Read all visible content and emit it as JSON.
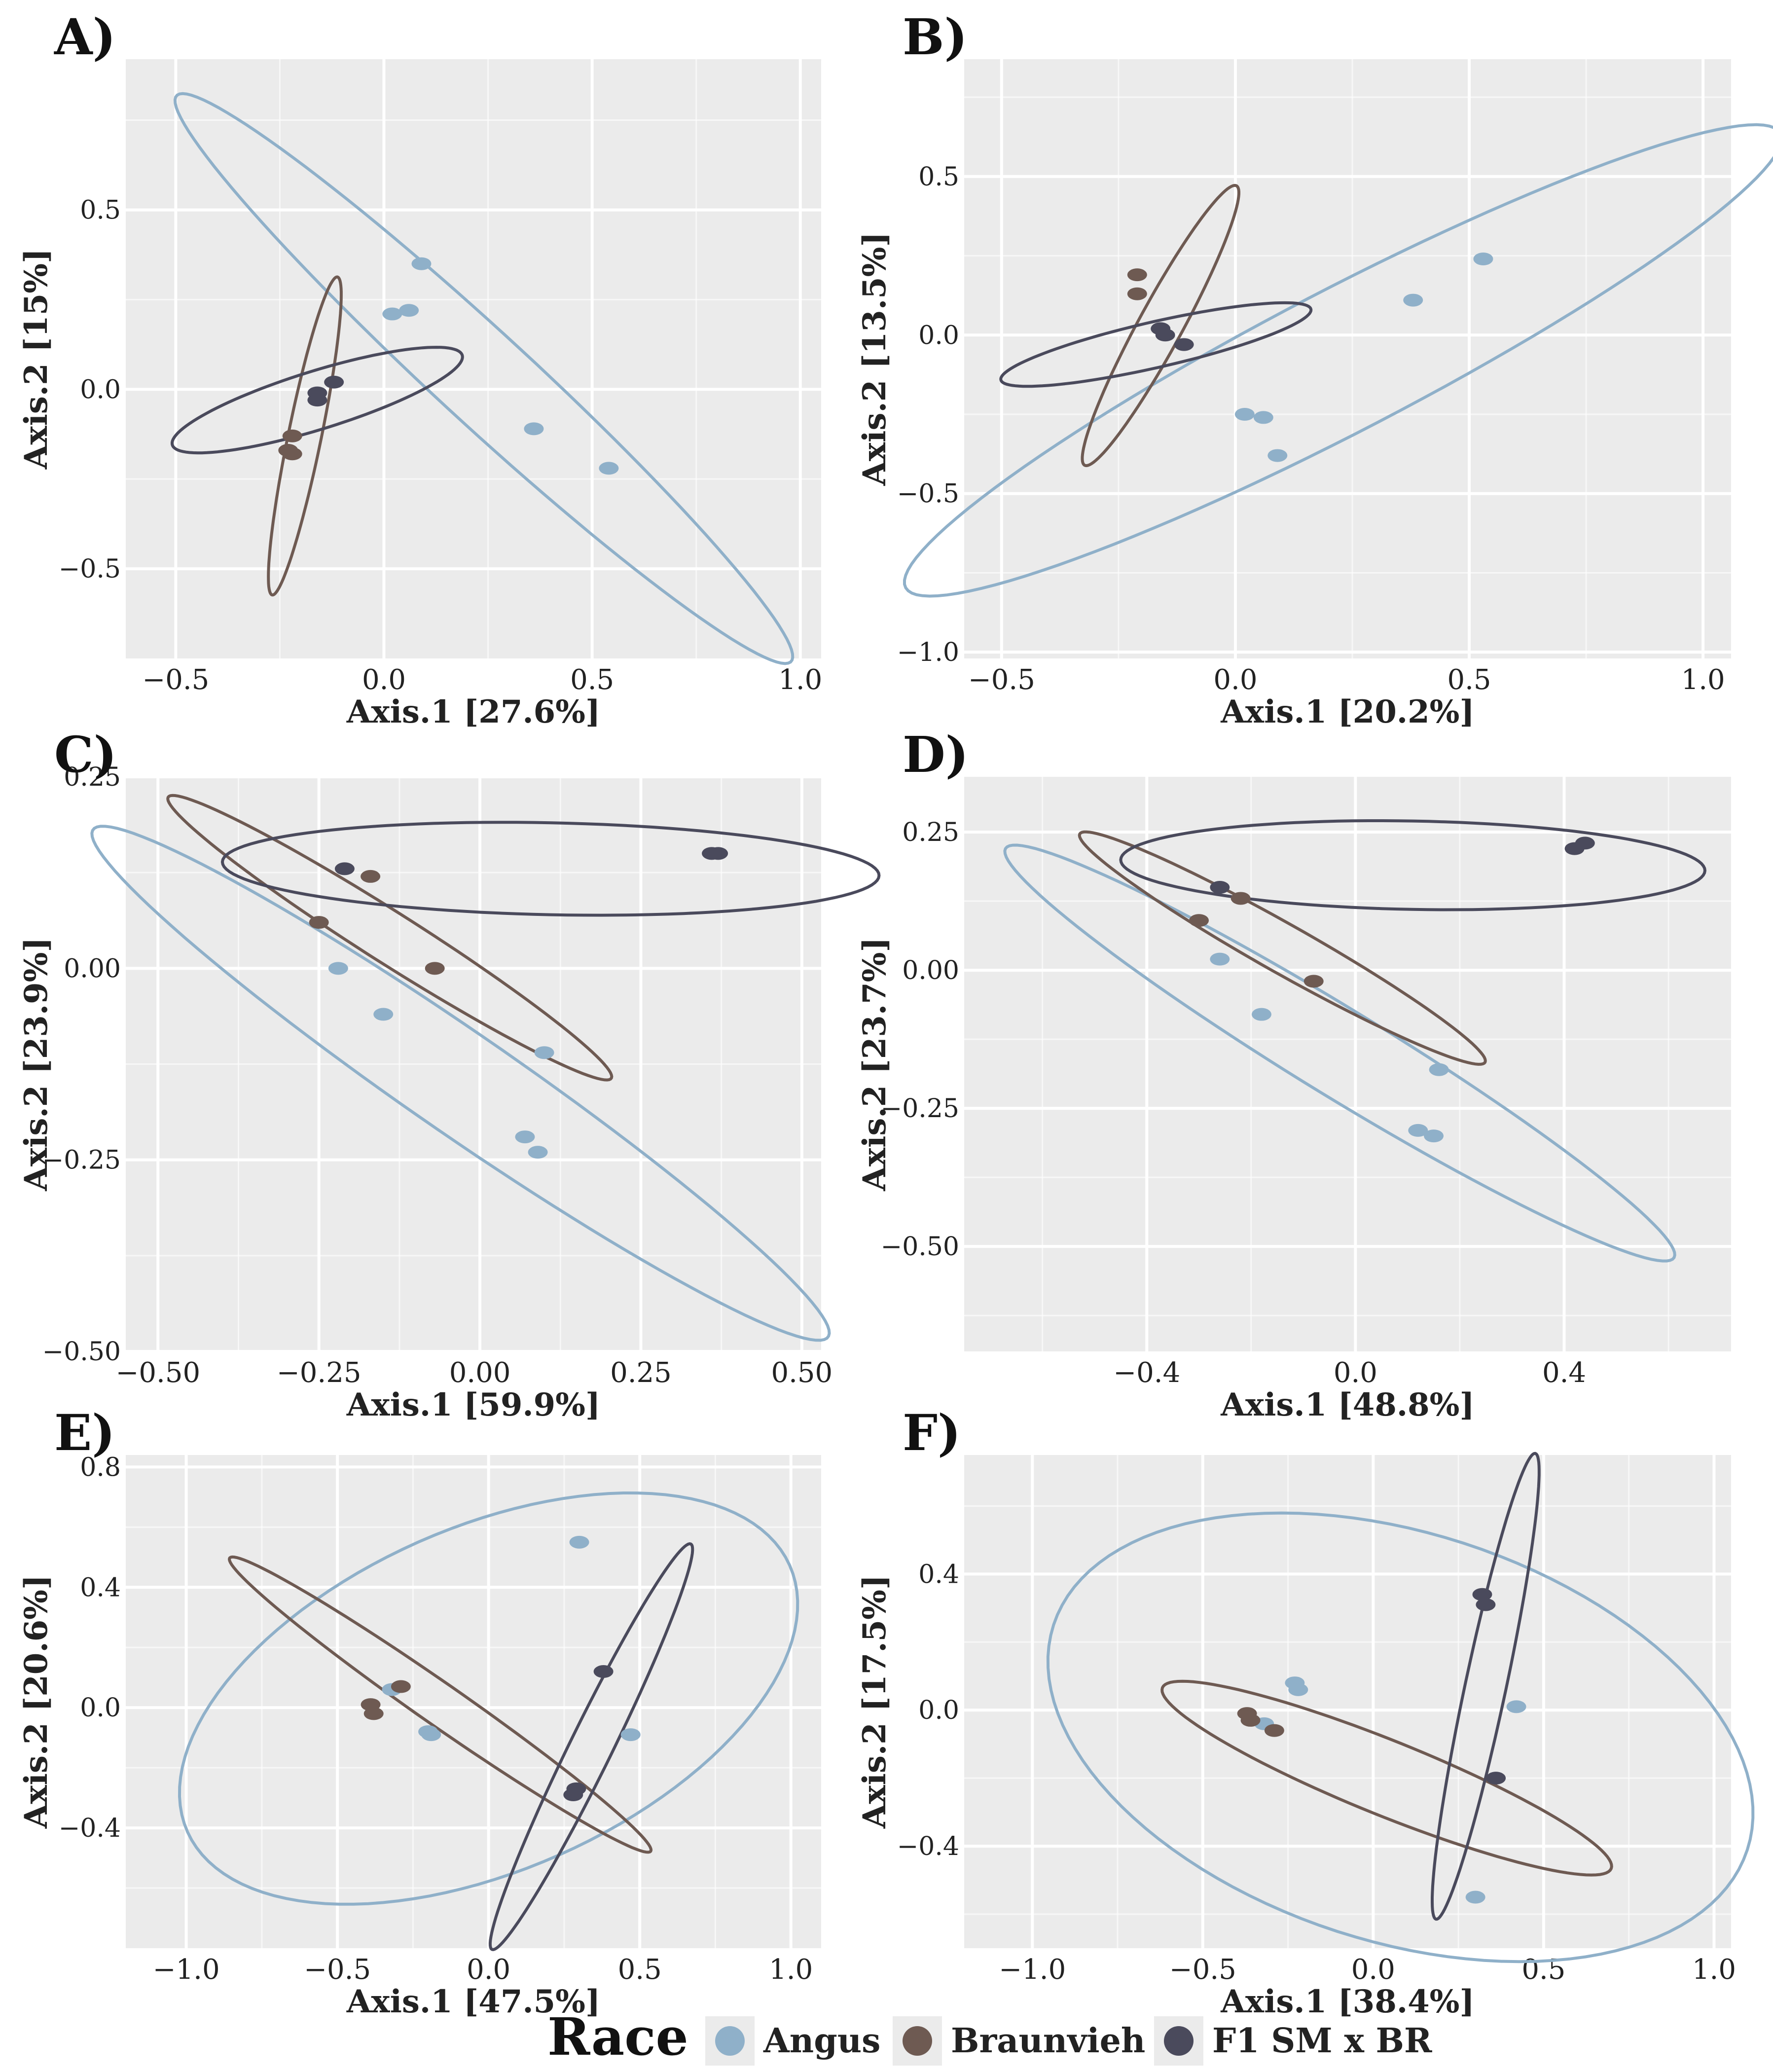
{
  "colors": {
    "Angus": "#8fb0c9",
    "Braunvieh": "#6e5a52",
    "F1 SM x BR": "#4a4a5c",
    "panel_bg": "#ebebeb",
    "grid": "#ffffff"
  },
  "legend": {
    "title": "Race",
    "entries": [
      "Angus",
      "Braunvieh",
      "F1 SM x BR"
    ]
  },
  "chart_data": [
    {
      "panel": "A)",
      "type": "scatter",
      "xlabel": "Axis.1   [27.6%]",
      "ylabel": "Axis.2   [15%]",
      "xlim": [
        -0.62,
        1.05
      ],
      "ylim": [
        -0.75,
        0.92
      ],
      "xticks": [
        -0.5,
        0.0,
        0.5,
        1.0
      ],
      "xtick_labels": [
        "−0.5",
        "0.0",
        "0.5",
        "1.0"
      ],
      "yticks": [
        -0.5,
        0.0,
        0.5
      ],
      "ytick_labels": [
        "−0.5",
        "0.0",
        "0.5"
      ],
      "points": [
        {
          "group": "Angus",
          "x": 0.09,
          "y": 0.35
        },
        {
          "group": "Angus",
          "x": 0.02,
          "y": 0.21
        },
        {
          "group": "Angus",
          "x": 0.06,
          "y": 0.22
        },
        {
          "group": "Angus",
          "x": 0.36,
          "y": -0.11
        },
        {
          "group": "Angus",
          "x": 0.54,
          "y": -0.22
        },
        {
          "group": "Braunvieh",
          "x": -0.22,
          "y": -0.13
        },
        {
          "group": "Braunvieh",
          "x": -0.23,
          "y": -0.17
        },
        {
          "group": "Braunvieh",
          "x": -0.22,
          "y": -0.18
        },
        {
          "group": "F1 SM x BR",
          "x": -0.16,
          "y": -0.01
        },
        {
          "group": "F1 SM x BR",
          "x": -0.12,
          "y": 0.02
        },
        {
          "group": "F1 SM x BR",
          "x": -0.16,
          "y": -0.03
        }
      ],
      "ellipses": [
        {
          "group": "Angus",
          "cx": 0.24,
          "cy": 0.03,
          "a": 1.08,
          "b": 0.12,
          "angle": -47
        },
        {
          "group": "Braunvieh",
          "cx": -0.19,
          "cy": -0.13,
          "a": 0.45,
          "b": 0.04,
          "angle": 80
        },
        {
          "group": "F1 SM x BR",
          "cx": -0.16,
          "cy": -0.03,
          "a": 0.37,
          "b": 0.08,
          "angle": 20
        }
      ]
    },
    {
      "panel": "B)",
      "type": "scatter",
      "xlabel": "Axis.1   [20.2%]",
      "ylabel": "Axis.2   [13.5%]",
      "xlim": [
        -0.58,
        1.06
      ],
      "ylim": [
        -1.02,
        0.87
      ],
      "xticks": [
        -0.5,
        0.0,
        0.5,
        1.0
      ],
      "xtick_labels": [
        "−0.5",
        "0.0",
        "0.5",
        "1.0"
      ],
      "yticks": [
        -1.0,
        -0.5,
        0.0,
        0.5
      ],
      "ytick_labels": [
        "−1.0",
        "−0.5",
        "0.0",
        "0.5"
      ],
      "points": [
        {
          "group": "Angus",
          "x": 0.53,
          "y": 0.24
        },
        {
          "group": "Angus",
          "x": 0.38,
          "y": 0.11
        },
        {
          "group": "Angus",
          "x": 0.02,
          "y": -0.25
        },
        {
          "group": "Angus",
          "x": 0.06,
          "y": -0.26
        },
        {
          "group": "Angus",
          "x": 0.09,
          "y": -0.38
        },
        {
          "group": "Braunvieh",
          "x": -0.21,
          "y": 0.19
        },
        {
          "group": "Braunvieh",
          "x": -0.21,
          "y": 0.13
        },
        {
          "group": "F1 SM x BR",
          "x": -0.16,
          "y": 0.02
        },
        {
          "group": "F1 SM x BR",
          "x": -0.15,
          "y": 0.0
        },
        {
          "group": "F1 SM x BR",
          "x": -0.11,
          "y": -0.03
        }
      ],
      "ellipses": [
        {
          "group": "Angus",
          "cx": 0.23,
          "cy": -0.08,
          "a": 1.18,
          "b": 0.2,
          "angle": 38
        },
        {
          "group": "Braunvieh",
          "cx": -0.16,
          "cy": 0.03,
          "a": 0.47,
          "b": 0.05,
          "angle": 70
        },
        {
          "group": "F1 SM x BR",
          "cx": -0.17,
          "cy": -0.03,
          "a": 0.35,
          "b": 0.07,
          "angle": 19
        }
      ]
    },
    {
      "panel": "C)",
      "type": "scatter",
      "xlabel": "Axis.1   [59.9%]",
      "ylabel": "Axis.2   [23.9%]",
      "xlim": [
        -0.55,
        0.53
      ],
      "ylim": [
        -0.5,
        0.25
      ],
      "xticks": [
        -0.5,
        -0.25,
        0.0,
        0.25,
        0.5
      ],
      "xtick_labels": [
        "−0.50",
        "−0.25",
        "0.00",
        "0.25",
        "0.50"
      ],
      "yticks": [
        -0.5,
        -0.25,
        0.0,
        0.25
      ],
      "ytick_labels": [
        "−0.50",
        "−0.25",
        "0.00",
        "0.25"
      ],
      "points": [
        {
          "group": "Angus",
          "x": -0.22,
          "y": 0.0
        },
        {
          "group": "Angus",
          "x": -0.15,
          "y": -0.06
        },
        {
          "group": "Angus",
          "x": 0.1,
          "y": -0.11
        },
        {
          "group": "Angus",
          "x": 0.07,
          "y": -0.22
        },
        {
          "group": "Angus",
          "x": 0.09,
          "y": -0.24
        },
        {
          "group": "Braunvieh",
          "x": -0.17,
          "y": 0.12
        },
        {
          "group": "Braunvieh",
          "x": -0.25,
          "y": 0.06
        },
        {
          "group": "Braunvieh",
          "x": -0.07,
          "y": 0.0
        },
        {
          "group": "F1 SM x BR",
          "x": -0.21,
          "y": 0.13
        },
        {
          "group": "F1 SM x BR",
          "x": 0.36,
          "y": 0.15
        },
        {
          "group": "F1 SM x BR",
          "x": 0.37,
          "y": 0.15
        }
      ],
      "ellipses": [
        {
          "group": "Angus",
          "cx": -0.03,
          "cy": -0.15,
          "a": 0.66,
          "b": 0.07,
          "angle": -30
        },
        {
          "group": "Braunvieh",
          "cx": -0.14,
          "cy": 0.04,
          "a": 0.39,
          "b": 0.035,
          "angle": -28
        },
        {
          "group": "F1 SM x BR",
          "cx": 0.11,
          "cy": 0.13,
          "a": 0.51,
          "b": 0.06,
          "angle": -1
        }
      ]
    },
    {
      "panel": "D)",
      "type": "scatter",
      "xlabel": "Axis.1   [48.8%]",
      "ylabel": "Axis.2   [23.7%]",
      "xlim": [
        -0.75,
        0.72
      ],
      "ylim": [
        -0.69,
        0.35
      ],
      "xticks": [
        -0.4,
        0.0,
        0.4
      ],
      "xtick_labels": [
        "−0.4",
        "0.0",
        "0.4"
      ],
      "yticks": [
        -0.5,
        -0.25,
        0.0,
        0.25
      ],
      "ytick_labels": [
        "−0.50",
        "−0.25",
        "0.00",
        "0.25"
      ],
      "points": [
        {
          "group": "Angus",
          "x": -0.26,
          "y": 0.02
        },
        {
          "group": "Angus",
          "x": -0.18,
          "y": -0.08
        },
        {
          "group": "Angus",
          "x": 0.16,
          "y": -0.18
        },
        {
          "group": "Angus",
          "x": 0.12,
          "y": -0.29
        },
        {
          "group": "Angus",
          "x": 0.15,
          "y": -0.3
        },
        {
          "group": "Braunvieh",
          "x": -0.22,
          "y": 0.13
        },
        {
          "group": "Braunvieh",
          "x": -0.3,
          "y": 0.09
        },
        {
          "group": "Braunvieh",
          "x": -0.08,
          "y": -0.02
        },
        {
          "group": "F1 SM x BR",
          "x": -0.26,
          "y": 0.15
        },
        {
          "group": "F1 SM x BR",
          "x": 0.42,
          "y": 0.22
        },
        {
          "group": "F1 SM x BR",
          "x": 0.44,
          "y": 0.23
        }
      ],
      "ellipses": [
        {
          "group": "Angus",
          "cx": -0.03,
          "cy": -0.15,
          "a": 0.74,
          "b": 0.08,
          "angle": -30
        },
        {
          "group": "Braunvieh",
          "cx": -0.14,
          "cy": 0.04,
          "a": 0.44,
          "b": 0.045,
          "angle": -28
        },
        {
          "group": "F1 SM x BR",
          "cx": 0.11,
          "cy": 0.19,
          "a": 0.56,
          "b": 0.08,
          "angle": -1
        }
      ]
    },
    {
      "panel": "E)",
      "type": "scatter",
      "xlabel": "Axis.1   [47.5%]",
      "ylabel": "Axis.2   [20.6%]",
      "xlim": [
        -1.2,
        1.1
      ],
      "ylim": [
        -0.8,
        0.84
      ],
      "xticks": [
        -1.0,
        -0.5,
        0.0,
        0.5,
        1.0
      ],
      "xtick_labels": [
        "−1.0",
        "−0.5",
        "0.0",
        "0.5",
        "1.0"
      ],
      "yticks": [
        -0.4,
        0.0,
        0.4,
        0.8
      ],
      "ytick_labels": [
        "−0.4",
        "0.0",
        "0.4",
        "0.8"
      ],
      "points": [
        {
          "group": "Angus",
          "x": 0.3,
          "y": 0.55
        },
        {
          "group": "Angus",
          "x": -0.32,
          "y": 0.06
        },
        {
          "group": "Angus",
          "x": -0.2,
          "y": -0.08
        },
        {
          "group": "Angus",
          "x": -0.19,
          "y": -0.09
        },
        {
          "group": "Angus",
          "x": 0.47,
          "y": -0.09
        },
        {
          "group": "Braunvieh",
          "x": -0.39,
          "y": 0.01
        },
        {
          "group": "Braunvieh",
          "x": -0.29,
          "y": 0.07
        },
        {
          "group": "Braunvieh",
          "x": -0.38,
          "y": -0.02
        },
        {
          "group": "F1 SM x BR",
          "x": 0.38,
          "y": 0.12
        },
        {
          "group": "F1 SM x BR",
          "x": 0.29,
          "y": -0.27
        },
        {
          "group": "F1 SM x BR",
          "x": 0.28,
          "y": -0.29
        }
      ],
      "ellipses": [
        {
          "group": "Angus",
          "cx": 0.0,
          "cy": 0.03,
          "a": 1.09,
          "b": 0.57,
          "angle": 24
        },
        {
          "group": "Braunvieh",
          "cx": -0.16,
          "cy": 0.01,
          "a": 0.85,
          "b": 0.07,
          "angle": -35
        },
        {
          "group": "F1 SM x BR",
          "cx": 0.34,
          "cy": -0.13,
          "a": 0.75,
          "b": 0.07,
          "angle": 64
        }
      ]
    },
    {
      "panel": "F)",
      "type": "scatter",
      "xlabel": "Axis.1   [38.4%]",
      "ylabel": "Axis.2   [17.5%]",
      "xlim": [
        -1.2,
        1.05
      ],
      "ylim": [
        -0.7,
        0.75
      ],
      "xticks": [
        -1.0,
        -0.5,
        0.0,
        0.5,
        1.0
      ],
      "xtick_labels": [
        "−1.0",
        "−0.5",
        "0.0",
        "0.5",
        "1.0"
      ],
      "yticks": [
        -0.4,
        0.0,
        0.4
      ],
      "ytick_labels": [
        "−0.4",
        "0.0",
        "0.4"
      ],
      "points": [
        {
          "group": "Angus",
          "x": -0.23,
          "y": 0.08
        },
        {
          "group": "Angus",
          "x": -0.22,
          "y": 0.06
        },
        {
          "group": "Angus",
          "x": -0.32,
          "y": -0.04
        },
        {
          "group": "Angus",
          "x": 0.42,
          "y": 0.01
        },
        {
          "group": "Angus",
          "x": 0.3,
          "y": -0.55
        },
        {
          "group": "Braunvieh",
          "x": -0.37,
          "y": -0.01
        },
        {
          "group": "Braunvieh",
          "x": -0.36,
          "y": -0.03
        },
        {
          "group": "Braunvieh",
          "x": -0.29,
          "y": -0.06
        },
        {
          "group": "F1 SM x BR",
          "x": 0.32,
          "y": 0.34
        },
        {
          "group": "F1 SM x BR",
          "x": 0.33,
          "y": 0.31
        },
        {
          "group": "F1 SM x BR",
          "x": 0.36,
          "y": -0.2
        }
      ],
      "ellipses": [
        {
          "group": "Angus",
          "cx": 0.08,
          "cy": -0.08,
          "a": 1.07,
          "b": 0.6,
          "angle": -18
        },
        {
          "group": "Braunvieh",
          "cx": 0.04,
          "cy": -0.2,
          "a": 0.71,
          "b": 0.11,
          "angle": -22
        },
        {
          "group": "F1 SM x BR",
          "cx": 0.33,
          "cy": 0.07,
          "a": 0.7,
          "b": 0.06,
          "angle": 78
        }
      ]
    }
  ]
}
